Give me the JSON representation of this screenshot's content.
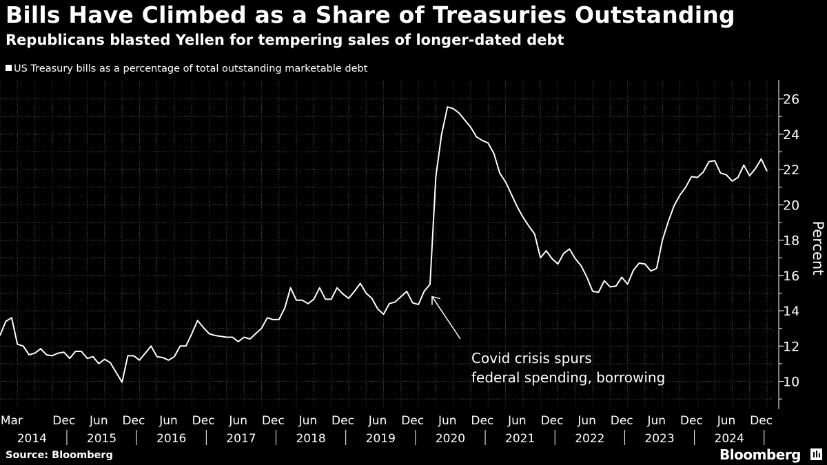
{
  "header": {
    "title": "Bills Have Climbed as a Share of Treasuries Outstanding",
    "subtitle": "Republicans blasted Yellen for tempering sales of longer-dated debt"
  },
  "legend": {
    "series_label": "US Treasury bills as a percentage of total outstanding marketable debt",
    "swatch_color": "#ffffff"
  },
  "footer": {
    "source": "Source: Bloomberg",
    "brand": "Bloomberg",
    "brand_icon": "bloomberg-terminal-icon"
  },
  "colors": {
    "background": "#000000",
    "line": "#ffffff",
    "grid": "#555555",
    "text": "#ffffff"
  },
  "chart_data": {
    "type": "line",
    "ylabel": "Percent",
    "ylim": [
      8.5,
      27
    ],
    "yticks": [
      10,
      12,
      14,
      16,
      18,
      20,
      22,
      24,
      26
    ],
    "y_axis_position": "right",
    "grid": true,
    "legend_position": "top-left",
    "x_month_labels": [
      {
        "date": "2014-03",
        "label": "Mar"
      },
      {
        "date": "2014-12",
        "label": "Dec"
      },
      {
        "date": "2015-06",
        "label": "Jun"
      },
      {
        "date": "2015-12",
        "label": "Dec"
      },
      {
        "date": "2016-06",
        "label": "Jun"
      },
      {
        "date": "2016-12",
        "label": "Dec"
      },
      {
        "date": "2017-06",
        "label": "Jun"
      },
      {
        "date": "2017-12",
        "label": "Dec"
      },
      {
        "date": "2018-06",
        "label": "Jun"
      },
      {
        "date": "2018-12",
        "label": "Dec"
      },
      {
        "date": "2019-06",
        "label": "Jun"
      },
      {
        "date": "2019-12",
        "label": "Dec"
      },
      {
        "date": "2020-06",
        "label": "Jun"
      },
      {
        "date": "2020-12",
        "label": "Dec"
      },
      {
        "date": "2021-06",
        "label": "Jun"
      },
      {
        "date": "2021-12",
        "label": "Dec"
      },
      {
        "date": "2022-06",
        "label": "Jun"
      },
      {
        "date": "2022-12",
        "label": "Dec"
      },
      {
        "date": "2023-06",
        "label": "Jun"
      },
      {
        "date": "2023-12",
        "label": "Dec"
      },
      {
        "date": "2024-06",
        "label": "Jun"
      },
      {
        "date": "2024-12",
        "label": "Dec"
      }
    ],
    "x_year_labels": [
      "2014",
      "2015",
      "2016",
      "2017",
      "2018",
      "2019",
      "2020",
      "2021",
      "2022",
      "2023",
      "2024"
    ],
    "annotation": {
      "lines": [
        "Covid crisis spurs",
        "federal spending, borrowing"
      ],
      "arrow_date": "2020-03",
      "arrow_value": 14.8
    },
    "series": [
      {
        "color": "#ffffff",
        "x": [
          "2014-01",
          "2014-02",
          "2014-03",
          "2014-04",
          "2014-05",
          "2014-06",
          "2014-07",
          "2014-08",
          "2014-09",
          "2014-10",
          "2014-11",
          "2014-12",
          "2015-01",
          "2015-02",
          "2015-03",
          "2015-04",
          "2015-05",
          "2015-06",
          "2015-07",
          "2015-08",
          "2015-09",
          "2015-10",
          "2015-11",
          "2015-12",
          "2016-01",
          "2016-02",
          "2016-03",
          "2016-04",
          "2016-05",
          "2016-06",
          "2016-07",
          "2016-08",
          "2016-09",
          "2016-10",
          "2016-11",
          "2016-12",
          "2017-01",
          "2017-02",
          "2017-03",
          "2017-04",
          "2017-05",
          "2017-06",
          "2017-07",
          "2017-08",
          "2017-09",
          "2017-10",
          "2017-11",
          "2017-12",
          "2018-01",
          "2018-02",
          "2018-03",
          "2018-04",
          "2018-05",
          "2018-06",
          "2018-07",
          "2018-08",
          "2018-09",
          "2018-10",
          "2018-11",
          "2018-12",
          "2019-01",
          "2019-02",
          "2019-03",
          "2019-04",
          "2019-05",
          "2019-06",
          "2019-07",
          "2019-08",
          "2019-09",
          "2019-10",
          "2019-11",
          "2019-12",
          "2020-01",
          "2020-02",
          "2020-03",
          "2020-04",
          "2020-05",
          "2020-06",
          "2020-07",
          "2020-08",
          "2020-09",
          "2020-10",
          "2020-11",
          "2020-12",
          "2021-01",
          "2021-02",
          "2021-03",
          "2021-04",
          "2021-05",
          "2021-06",
          "2021-07",
          "2021-08",
          "2021-09",
          "2021-10",
          "2021-11",
          "2021-12",
          "2022-01",
          "2022-02",
          "2022-03",
          "2022-04",
          "2022-05",
          "2022-06",
          "2022-07",
          "2022-08",
          "2022-09",
          "2022-10",
          "2022-11",
          "2022-12",
          "2023-01",
          "2023-02",
          "2023-03",
          "2023-04",
          "2023-05",
          "2023-06",
          "2023-07",
          "2023-08",
          "2023-09",
          "2023-10",
          "2023-11",
          "2023-12",
          "2024-01",
          "2024-02",
          "2024-03",
          "2024-04",
          "2024-05",
          "2024-06",
          "2024-07",
          "2024-08",
          "2024-09",
          "2024-10",
          "2024-11",
          "2024-12",
          "2025-01"
        ],
        "values": [
          12.6,
          13.4,
          13.6,
          12.1,
          12.0,
          11.5,
          11.6,
          11.85,
          11.5,
          11.45,
          11.6,
          11.65,
          11.3,
          11.7,
          11.7,
          11.3,
          11.4,
          11.0,
          11.25,
          11.05,
          10.5,
          9.95,
          11.45,
          11.45,
          11.2,
          11.6,
          12.0,
          11.4,
          11.35,
          11.2,
          11.4,
          12.0,
          12.0,
          12.7,
          13.45,
          13.05,
          12.7,
          12.6,
          12.55,
          12.5,
          12.5,
          12.25,
          12.5,
          12.4,
          12.7,
          13.0,
          13.6,
          13.5,
          13.5,
          14.15,
          15.3,
          14.6,
          14.6,
          14.4,
          14.65,
          15.3,
          14.65,
          14.65,
          15.3,
          14.95,
          14.7,
          15.1,
          15.55,
          15.0,
          14.7,
          14.1,
          13.8,
          14.4,
          14.5,
          14.8,
          15.1,
          14.45,
          14.35,
          15.1,
          15.5,
          21.6,
          24.0,
          25.55,
          25.45,
          25.2,
          24.8,
          24.4,
          23.85,
          23.65,
          23.5,
          22.9,
          21.8,
          21.3,
          20.6,
          19.9,
          19.3,
          18.8,
          18.35,
          17.0,
          17.4,
          16.95,
          16.65,
          17.25,
          17.5,
          16.95,
          16.55,
          15.9,
          15.1,
          15.05,
          15.7,
          15.35,
          15.4,
          15.9,
          15.5,
          16.3,
          16.7,
          16.65,
          16.25,
          16.4,
          18.0,
          19.05,
          19.95,
          20.55,
          21.0,
          21.6,
          21.55,
          21.85,
          22.45,
          22.5,
          21.8,
          21.7,
          21.35,
          21.55,
          22.25,
          21.65,
          22.05,
          22.6,
          21.9
        ]
      }
    ]
  }
}
